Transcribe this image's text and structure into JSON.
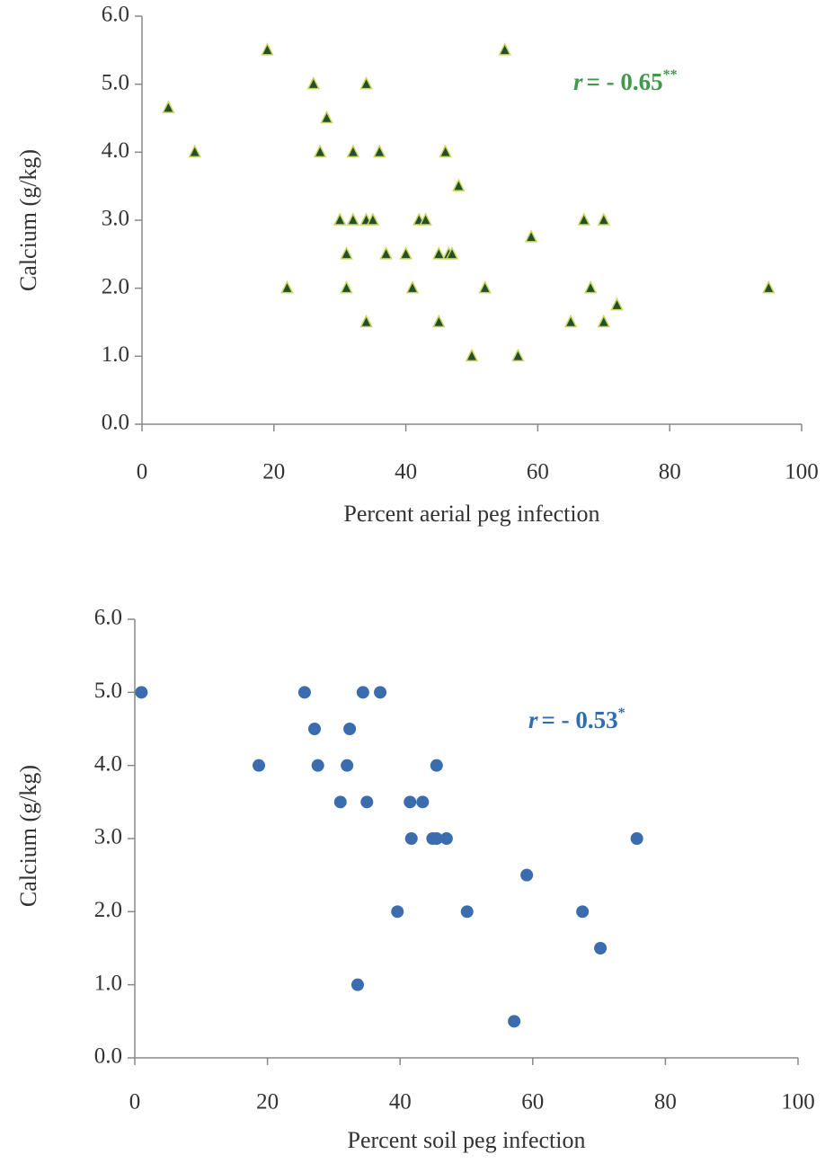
{
  "chart_data": [
    {
      "type": "scatter",
      "x_label": "Percent aerial peg infection",
      "y_label": "Calcium (g/kg)",
      "annotation": {
        "symbol": "r",
        "text": "= - 0.65",
        "superscript": "**",
        "color": "#3f9a4c"
      },
      "xlim": [
        0,
        100
      ],
      "xticks": [
        0,
        20,
        40,
        60,
        80,
        100
      ],
      "ylim": [
        0,
        6
      ],
      "yticks": [
        {
          "value": 0,
          "label": "0.0"
        },
        {
          "value": 1,
          "label": "1.0"
        },
        {
          "value": 2,
          "label": "2.0"
        },
        {
          "value": 3,
          "label": "3.0"
        },
        {
          "value": 4,
          "label": "4.0"
        },
        {
          "value": 5,
          "label": "5.0"
        },
        {
          "value": 6,
          "label": "6.0"
        }
      ],
      "marker": "triangle",
      "series": [
        {
          "color": "#23502a",
          "x": [
            4,
            8,
            19,
            26,
            28,
            27,
            32,
            34,
            36,
            30,
            32,
            34,
            35,
            31,
            37,
            40,
            31,
            22,
            34,
            42,
            43,
            41,
            46,
            48,
            45,
            46.5,
            47,
            45,
            50,
            55,
            52,
            57,
            59,
            67,
            70,
            68,
            65,
            70,
            72,
            95
          ],
          "values": [
            4.65,
            4.0,
            5.5,
            5.0,
            4.5,
            4.0,
            4.0,
            5.0,
            4.0,
            3.0,
            3.0,
            3.0,
            3.0,
            2.5,
            2.5,
            2.5,
            2.0,
            2.0,
            1.5,
            3.0,
            3.0,
            2.0,
            4.0,
            3.5,
            2.5,
            2.5,
            2.5,
            1.5,
            1.0,
            5.5,
            2.0,
            1.0,
            2.75,
            3.0,
            3.0,
            2.0,
            1.5,
            1.5,
            1.75,
            2.0
          ]
        }
      ]
    },
    {
      "type": "scatter",
      "x_label": "Percent soil peg infection",
      "y_label": "Calcium (g/kg)",
      "annotation": {
        "symbol": "r",
        "text": "= - 0.53",
        "superscript": "*",
        "color": "#2f6db3"
      },
      "xlim": [
        0,
        100
      ],
      "xticks": [
        0,
        20,
        40,
        60,
        80,
        100
      ],
      "ylim": [
        0,
        6
      ],
      "yticks": [
        {
          "value": 0,
          "label": "0.0"
        },
        {
          "value": 1,
          "label": "1.0"
        },
        {
          "value": 2,
          "label": "2.0"
        },
        {
          "value": 3,
          "label": "3.0"
        },
        {
          "value": 4,
          "label": "4.0"
        },
        {
          "value": 5,
          "label": "5.0"
        },
        {
          "value": 6,
          "label": "6.0"
        }
      ],
      "marker": "circle",
      "series": [
        {
          "color": "#3a6cae",
          "x": [
            1,
            18.7,
            25.6,
            27.1,
            27.6,
            31,
            32.4,
            34.4,
            37,
            32,
            35,
            41.5,
            43.4,
            41.7,
            44.9,
            45.5,
            47,
            45.5,
            59.1,
            39.6,
            50.1,
            67.5,
            75.7,
            70.2,
            33.6,
            57.2
          ],
          "values": [
            5.0,
            4.0,
            5.0,
            4.5,
            4.0,
            3.5,
            4.5,
            5.0,
            5.0,
            4.0,
            3.5,
            3.5,
            3.5,
            3.0,
            3.0,
            3.0,
            3.0,
            4.0,
            2.5,
            2.0,
            2.0,
            2.0,
            3.0,
            1.5,
            1.0,
            0.5
          ]
        }
      ]
    }
  ]
}
